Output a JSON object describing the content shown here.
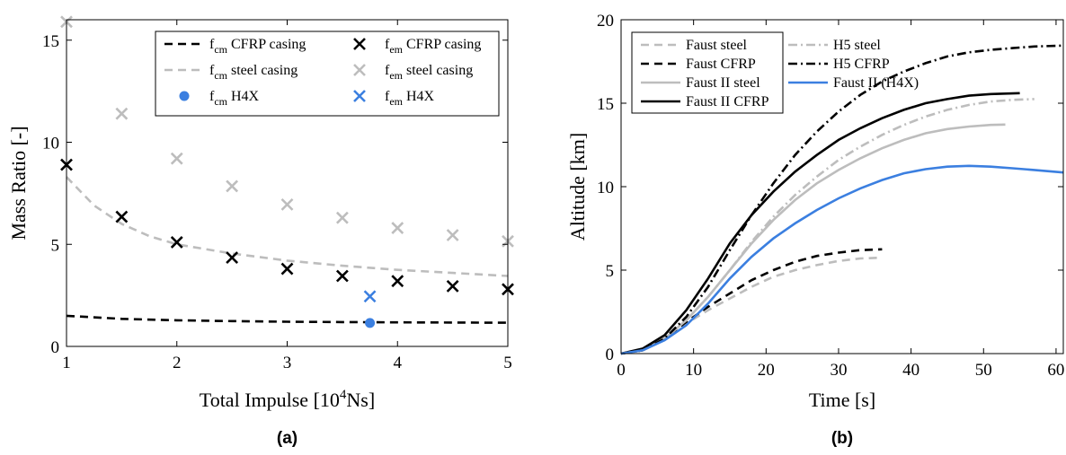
{
  "colors": {
    "black": "#000000",
    "grey": "#bdbdbd",
    "blue": "#3b7fe0"
  },
  "chart_data": [
    {
      "panel_label": "(a)",
      "type": "scatter",
      "xlabel": "Total Impulse [10⁴Ns]",
      "ylabel": "Mass Ratio [-]",
      "xlim": [
        1,
        5
      ],
      "ylim": [
        0,
        16
      ],
      "xticks": [
        "1",
        "2",
        "3",
        "4",
        "5"
      ],
      "yticks": [
        "0",
        "5",
        "10",
        "15"
      ],
      "legend_position": "top-right",
      "series": [
        {
          "name": "f_cm CFRP casing",
          "name_main": "f",
          "name_sub": "cm",
          "name_rest": " CFRP casing",
          "kind": "line",
          "dash": "dashed",
          "color": "#000000",
          "x": [
            1,
            1.5,
            2,
            2.5,
            3,
            3.5,
            4,
            4.5,
            5
          ],
          "y": [
            1.5,
            1.35,
            1.28,
            1.24,
            1.21,
            1.19,
            1.18,
            1.17,
            1.16
          ]
        },
        {
          "name": "f_cm steel casing",
          "name_main": "f",
          "name_sub": "cm",
          "name_rest": " steel casing",
          "kind": "line",
          "dash": "dashed",
          "color": "#bdbdbd",
          "x": [
            1,
            1.25,
            1.5,
            1.75,
            2,
            2.5,
            3,
            3.5,
            4,
            4.5,
            5
          ],
          "y": [
            8.3,
            6.9,
            6.0,
            5.4,
            5.0,
            4.55,
            4.2,
            3.95,
            3.75,
            3.6,
            3.45
          ]
        },
        {
          "name": "f_cm H4X",
          "name_main": "f",
          "name_sub": "cm",
          "name_rest": " H4X",
          "kind": "dot",
          "color": "#3b7fe0",
          "x": [
            3.75
          ],
          "y": [
            1.15
          ]
        },
        {
          "name": "f_em CFRP casing",
          "name_main": "f",
          "name_sub": "em",
          "name_rest": " CFRP casing",
          "kind": "cross",
          "color": "#000000",
          "x": [
            1,
            1.5,
            2,
            2.5,
            3,
            3.5,
            4,
            4.5,
            5
          ],
          "y": [
            8.9,
            6.35,
            5.1,
            4.35,
            3.8,
            3.45,
            3.2,
            2.95,
            2.8
          ]
        },
        {
          "name": "f_em steel casing",
          "name_main": "f",
          "name_sub": "em",
          "name_rest": " steel casing",
          "kind": "cross",
          "color": "#bdbdbd",
          "x": [
            1,
            1.5,
            2,
            2.5,
            3,
            3.5,
            4,
            4.5,
            5
          ],
          "y": [
            15.9,
            11.4,
            9.2,
            7.85,
            6.95,
            6.3,
            5.8,
            5.45,
            5.15
          ]
        },
        {
          "name": "f_em H4X",
          "name_main": "f",
          "name_sub": "em",
          "name_rest": " H4X",
          "kind": "cross",
          "color": "#3b7fe0",
          "x": [
            3.75
          ],
          "y": [
            2.45
          ]
        }
      ]
    },
    {
      "panel_label": "(b)",
      "type": "line",
      "xlabel": "Time [s]",
      "ylabel": "Altitude [km]",
      "xlim": [
        0,
        61
      ],
      "ylim": [
        0,
        20
      ],
      "xticks": [
        "0",
        "10",
        "20",
        "30",
        "40",
        "50",
        "60"
      ],
      "yticks": [
        "0",
        "5",
        "10",
        "15",
        "20"
      ],
      "legend_position": "top-left",
      "series": [
        {
          "name": "Faust steel",
          "color": "#bdbdbd",
          "dash": "dashed",
          "x": [
            0,
            3,
            6,
            9,
            12,
            15,
            18,
            21,
            24,
            27,
            30,
            33,
            36
          ],
          "y": [
            0,
            0.2,
            0.9,
            1.8,
            2.6,
            3.3,
            4.0,
            4.6,
            5.0,
            5.3,
            5.55,
            5.7,
            5.75
          ]
        },
        {
          "name": "Faust CFRP",
          "color": "#000000",
          "dash": "dashed",
          "x": [
            0,
            3,
            6,
            9,
            12,
            15,
            18,
            21,
            24,
            27,
            30,
            33,
            36
          ],
          "y": [
            0,
            0.2,
            0.9,
            1.9,
            2.8,
            3.6,
            4.4,
            5.0,
            5.5,
            5.85,
            6.05,
            6.2,
            6.25
          ]
        },
        {
          "name": "Faust II steel",
          "color": "#bdbdbd",
          "dash": "solid",
          "x": [
            0,
            3,
            6,
            9,
            12,
            15,
            18,
            21,
            24,
            27,
            30,
            33,
            36,
            39,
            42,
            45,
            48,
            51,
            53
          ],
          "y": [
            0,
            0.2,
            0.9,
            2.0,
            3.4,
            5.0,
            6.6,
            8.0,
            9.2,
            10.2,
            11.0,
            11.7,
            12.3,
            12.8,
            13.2,
            13.45,
            13.6,
            13.7,
            13.72
          ]
        },
        {
          "name": "Faust II CFRP",
          "color": "#000000",
          "dash": "solid",
          "x": [
            0,
            3,
            6,
            9,
            12,
            15,
            18,
            21,
            24,
            27,
            30,
            33,
            36,
            39,
            42,
            45,
            48,
            51,
            55
          ],
          "y": [
            0,
            0.3,
            1.1,
            2.6,
            4.5,
            6.6,
            8.3,
            9.7,
            10.9,
            11.9,
            12.8,
            13.5,
            14.1,
            14.6,
            15.0,
            15.25,
            15.45,
            15.55,
            15.6
          ]
        },
        {
          "name": "H5 steel",
          "color": "#bdbdbd",
          "dash": "dashdot",
          "x": [
            0,
            3,
            6,
            9,
            12,
            15,
            18,
            21,
            24,
            27,
            30,
            33,
            36,
            39,
            42,
            45,
            48,
            51,
            54,
            57
          ],
          "y": [
            0,
            0.2,
            0.9,
            2.0,
            3.4,
            5.0,
            6.7,
            8.2,
            9.5,
            10.6,
            11.6,
            12.4,
            13.1,
            13.7,
            14.2,
            14.6,
            14.9,
            15.1,
            15.2,
            15.25
          ]
        },
        {
          "name": "H5 CFRP",
          "color": "#000000",
          "dash": "dashdot",
          "x": [
            0,
            3,
            6,
            9,
            12,
            15,
            18,
            21,
            24,
            27,
            30,
            33,
            36,
            39,
            42,
            45,
            48,
            51,
            54,
            57,
            61
          ],
          "y": [
            0,
            0.2,
            0.9,
            2.2,
            4.0,
            6.2,
            8.3,
            10.2,
            11.9,
            13.3,
            14.5,
            15.5,
            16.3,
            16.9,
            17.4,
            17.8,
            18.05,
            18.2,
            18.3,
            18.4,
            18.45
          ]
        },
        {
          "name": "Faust II (H4X)",
          "color": "#3b7fe0",
          "dash": "solid",
          "x": [
            0,
            3,
            6,
            9,
            12,
            15,
            18,
            21,
            24,
            27,
            30,
            33,
            36,
            39,
            42,
            45,
            48,
            51,
            54,
            57,
            61
          ],
          "y": [
            0,
            0.2,
            0.8,
            1.7,
            3.0,
            4.5,
            5.8,
            6.9,
            7.8,
            8.6,
            9.3,
            9.9,
            10.4,
            10.8,
            11.05,
            11.2,
            11.25,
            11.2,
            11.1,
            11.0,
            10.85
          ]
        }
      ]
    }
  ]
}
